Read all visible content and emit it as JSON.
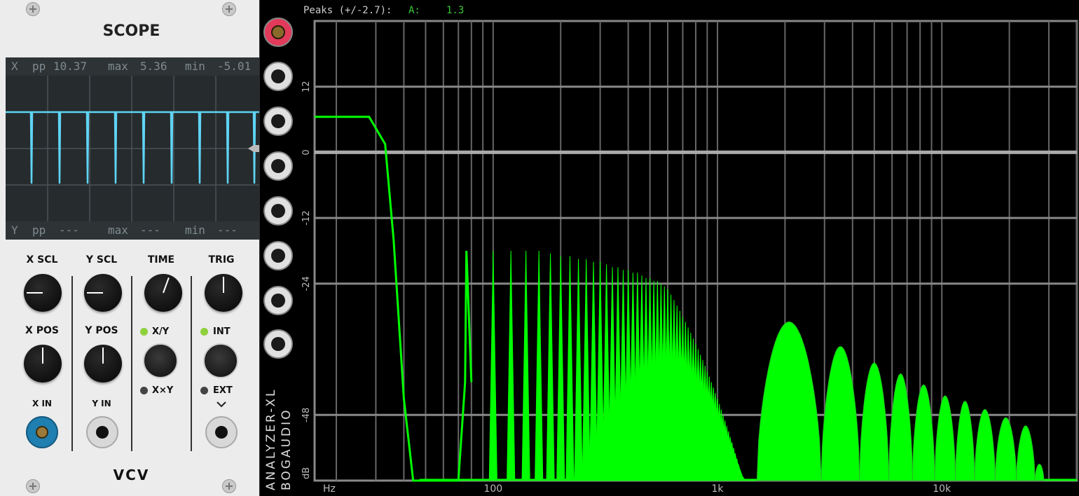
{
  "scope": {
    "title": "SCOPE",
    "brand": "VCV",
    "x_readout": {
      "channel": "X",
      "pp_label": "pp",
      "pp": "10.37",
      "max_label": "max",
      "max": "5.36",
      "min_label": "min",
      "min": "-5.01"
    },
    "y_readout": {
      "channel": "Y",
      "pp_label": "pp",
      "pp": "---",
      "max_label": "max",
      "max": "---",
      "min_label": "min",
      "min": "---"
    },
    "knobs": {
      "x_scl": "X SCL",
      "y_scl": "Y SCL",
      "time": "TIME",
      "trig": "TRIG",
      "x_pos": "X POS",
      "y_pos": "Y POS"
    },
    "mode": {
      "xy": "X/Y",
      "xxy": "X×Y"
    },
    "trig_source": {
      "int": "INT",
      "ext": "EXT"
    },
    "inputs": {
      "x_in": "X IN",
      "y_in": "Y IN"
    },
    "trace_color": "#5fd4f4"
  },
  "analyzer": {
    "brand": "BOGAUDIO",
    "model": "ANALYZER-XL",
    "peaks_label": "Peaks (+/-2.7):",
    "channel": "A:",
    "peak_value": "1.3",
    "trace_color": "#00ff00"
  },
  "chart_data": {
    "type": "area",
    "xlabel": "Hz",
    "ylabel": "dB",
    "x_scale": "log",
    "xlim": [
      16,
      40000
    ],
    "ylim": [
      -60,
      24
    ],
    "x_ticks": [
      {
        "value": 100,
        "label": "100"
      },
      {
        "value": 1000,
        "label": "1k"
      },
      {
        "value": 10000,
        "label": "10k"
      }
    ],
    "y_ticks": [
      {
        "value": 12,
        "label": "12"
      },
      {
        "value": 0,
        "label": "0"
      },
      {
        "value": -12,
        "label": "-12"
      },
      {
        "value": -24,
        "label": "-24"
      },
      {
        "value": -48,
        "label": "-48"
      }
    ],
    "grid": true,
    "series": [
      {
        "x": [
          16,
          28,
          33,
          36,
          40,
          44,
          47,
          52,
          58,
          70,
          75,
          76,
          80
        ],
        "y": [
          6.5,
          6.5,
          1.5,
          -16,
          -45,
          -60,
          -60,
          -60,
          -60,
          -60,
          -42,
          -18,
          -42
        ]
      }
    ],
    "harmonic_peaks": {
      "x": [
        100,
        120,
        140,
        160,
        180,
        200,
        220,
        240,
        260,
        280,
        300,
        320,
        340,
        360,
        380,
        400,
        420,
        440,
        460,
        480,
        500,
        520,
        540,
        560,
        580,
        600,
        620,
        640,
        660,
        680,
        700,
        720,
        740,
        760,
        780,
        800,
        820,
        840,
        860,
        880,
        900,
        920,
        940,
        960,
        980,
        1000,
        1020,
        1040,
        1060,
        1080,
        1100,
        1120,
        1140,
        1160,
        1180,
        1200,
        1220,
        1240,
        1260,
        1280,
        1300,
        1320,
        1340,
        1360,
        1380,
        1400,
        1420,
        1440,
        1460,
        1480,
        1500
      ],
      "y": [
        -18,
        -18,
        -18,
        -18,
        -18.5,
        -19,
        -19,
        -19.5,
        -19.5,
        -20,
        -20,
        -20.5,
        -21,
        -21,
        -21.5,
        -21.5,
        -22,
        -22,
        -22.5,
        -23,
        -23,
        -23.5,
        -23.5,
        -24,
        -24.5,
        -25,
        -26,
        -27,
        -28,
        -29,
        -30,
        -31,
        -32,
        -33,
        -34,
        -35,
        -36,
        -37,
        -38,
        -39,
        -40,
        -41,
        -42,
        -43,
        -44,
        -45,
        -46,
        -47,
        -48,
        -49,
        -50,
        -51,
        -52,
        -53,
        -54,
        -55,
        -56,
        -57,
        -58,
        -59,
        -60,
        -60,
        -60,
        -60,
        -60,
        -60,
        -60,
        -60,
        -60,
        -60,
        -60
      ]
    },
    "lobes": [
      {
        "x": [
          1500,
          2900
        ],
        "peak": -31
      },
      {
        "x": [
          2900,
          4300
        ],
        "peak": -35.5
      },
      {
        "x": [
          4300,
          5800
        ],
        "peak": -38.5
      },
      {
        "x": [
          5800,
          7400
        ],
        "peak": -40.5
      },
      {
        "x": [
          7400,
          9300
        ],
        "peak": -42.5
      },
      {
        "x": [
          9300,
          11500
        ],
        "peak": -44.5
      },
      {
        "x": [
          11500,
          14000
        ],
        "peak": -45.5
      },
      {
        "x": [
          14000,
          17300
        ],
        "peak": -47
      },
      {
        "x": [
          17300,
          21500
        ],
        "peak": -48.5
      },
      {
        "x": [
          21500,
          26000
        ],
        "peak": -50
      },
      {
        "x": [
          26000,
          28500
        ],
        "peak": -57
      }
    ]
  }
}
